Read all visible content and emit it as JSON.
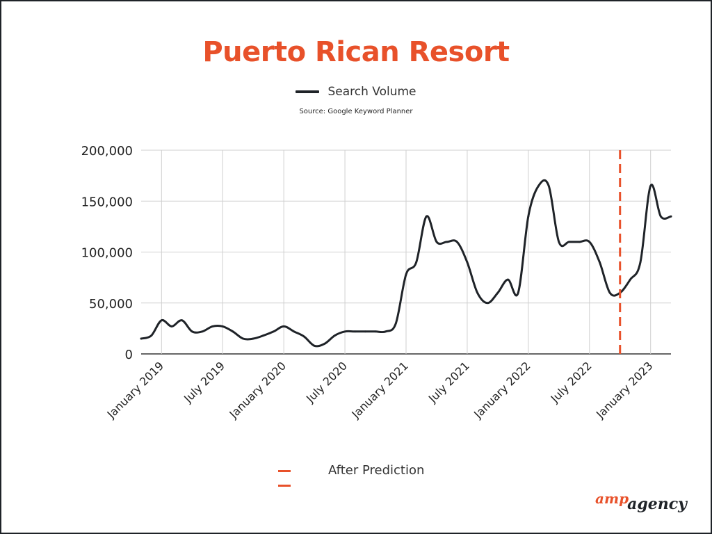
{
  "colors": {
    "title": "#e8512a",
    "line": "#1f2328",
    "prediction": "#e8512a",
    "grid": "#cfcfcf",
    "logo_accent": "#e8512a"
  },
  "chart_data": {
    "type": "line",
    "title": "Puerto Rican Resort",
    "subtitle": "Source: Google Keyword Planner",
    "series": [
      {
        "name": "Search Volume",
        "x": [
          "2018-11",
          "2018-12",
          "2019-01",
          "2019-02",
          "2019-03",
          "2019-04",
          "2019-05",
          "2019-06",
          "2019-07",
          "2019-08",
          "2019-09",
          "2019-10",
          "2019-11",
          "2019-12",
          "2020-01",
          "2020-02",
          "2020-03",
          "2020-04",
          "2020-05",
          "2020-06",
          "2020-07",
          "2020-08",
          "2020-09",
          "2020-10",
          "2020-11",
          "2020-12",
          "2021-01",
          "2021-02",
          "2021-03",
          "2021-04",
          "2021-05",
          "2021-06",
          "2021-07",
          "2021-08",
          "2021-09",
          "2021-10",
          "2021-11",
          "2021-12",
          "2022-01",
          "2022-02",
          "2022-03",
          "2022-04",
          "2022-05",
          "2022-06",
          "2022-07",
          "2022-08",
          "2022-09",
          "2022-10",
          "2022-11",
          "2022-12",
          "2023-01",
          "2023-02",
          "2023-03"
        ],
        "values": [
          15000,
          18000,
          33000,
          27000,
          33000,
          22000,
          22000,
          27000,
          27000,
          22000,
          15000,
          15000,
          18000,
          22000,
          27000,
          22000,
          17000,
          8000,
          10000,
          18000,
          22000,
          22000,
          22000,
          22000,
          22000,
          30000,
          78000,
          90000,
          135000,
          110000,
          110000,
          110000,
          90000,
          60000,
          50000,
          60000,
          73000,
          60000,
          135000,
          165000,
          165000,
          110000,
          110000,
          110000,
          110000,
          90000,
          60000,
          60000,
          73000,
          90000,
          165000,
          135000,
          135000
        ]
      }
    ],
    "x_tick_labels": [
      "January 2019",
      "July 2019",
      "January 2020",
      "July 2020",
      "January 2021",
      "July 2021",
      "January 2022",
      "July 2022",
      "January 2023"
    ],
    "x_ticks": [
      "2019-01",
      "2019-07",
      "2020-01",
      "2020-07",
      "2021-01",
      "2021-07",
      "2022-01",
      "2022-07",
      "2023-01"
    ],
    "y_ticks": [
      0,
      50000,
      100000,
      150000,
      200000
    ],
    "y_tick_labels": [
      "0",
      "50,000",
      "100,000",
      "150,000",
      "200,000"
    ],
    "ylim": [
      0,
      200000
    ],
    "xlim": [
      "2018-11",
      "2023-03"
    ],
    "grid": true,
    "legend_position": "top-center",
    "annotations": [
      {
        "type": "vertical-dashed-line",
        "x": "2022-10",
        "label": "After Prediction"
      }
    ]
  },
  "logo": {
    "part1": "amp",
    "part2": "agency"
  }
}
